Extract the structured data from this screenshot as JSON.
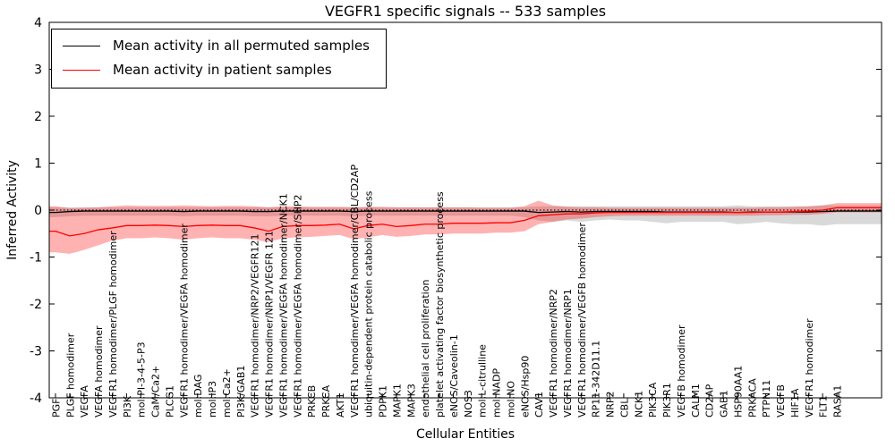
{
  "chart_data": {
    "type": "line",
    "title": "VEGFR1 specific signals -- 533 samples",
    "xlabel": "Cellular Entities",
    "ylabel": "Inferred Activity",
    "ylim": [
      -4,
      4
    ],
    "yticks": [
      4,
      3,
      2,
      1,
      0,
      -1,
      -2,
      -3,
      -4
    ],
    "grid": false,
    "zero_line": true,
    "legend_position": "upper left",
    "categories": [
      "PGF",
      "PLGF homodimer",
      "VEGFA",
      "VEGFA homodimer",
      "VEGFR1 homodimer/PLGF homodimer",
      "PI3K",
      "mol:PI-3-4-5-P3",
      "CaM/Ca2+",
      "PLCG1",
      "VEGFR1 homodimer/VEGFA homodimer",
      "mol:DAG",
      "mol:IP3",
      "mol:Ca2+",
      "PI3K/GAB1",
      "VEGFR1 homodimer/NRP2/VEGFR121",
      "VEGFR1 homodimer/NRP1/VEGFR 121",
      "VEGFR1 homodimer/VEGFA homodimer/NCK1",
      "VEGFR1 homodimer/VEGFA homodimer/SHP2",
      "PRKCB",
      "PRKCA",
      "AKT1",
      "VEGFR1 homodimer/VEGFA homodimer/CBL/CD2AP",
      "ubiquitin-dependent protein catabolic process",
      "PDPK1",
      "MAPK1",
      "MAPK3",
      "endothelial cell proliferation",
      "platelet activating factor biosynthetic process",
      "eNOS/Caveolin-1",
      "NOS3",
      "mol:L-citrulline",
      "mol:NADP",
      "mol:NO",
      "eNOS/Hsp90",
      "CAV1",
      "VEGFR1 homodimer/NRP2",
      "VEGFR1 homodimer/NRP1",
      "VEGFR1 homodimer/VEGFB homodimer",
      "RP11-342D11.1",
      "NRP2",
      "CBL",
      "NCK1",
      "PIK3CA",
      "PIK3R1",
      "VEGFB homodimer",
      "CALM1",
      "CD2AP",
      "GAB1",
      "HSP90AA1",
      "PRKACA",
      "PTPN11",
      "VEGFB",
      "HIF1A",
      "VEGFR1 homodimer",
      "FLT1",
      "RASA1"
    ],
    "series": [
      {
        "name": "Mean activity in all permuted samples",
        "color": "#000000",
        "band_color": "rgba(0,0,0,0.15)",
        "values": [
          -0.05,
          -0.03,
          -0.02,
          -0.02,
          -0.02,
          -0.02,
          -0.02,
          -0.02,
          -0.02,
          -0.03,
          -0.02,
          -0.02,
          -0.02,
          -0.02,
          -0.03,
          -0.03,
          -0.02,
          -0.02,
          -0.02,
          -0.02,
          -0.02,
          -0.03,
          -0.02,
          -0.02,
          -0.02,
          -0.02,
          -0.02,
          -0.02,
          -0.02,
          -0.02,
          -0.02,
          -0.02,
          -0.02,
          -0.02,
          -0.05,
          -0.04,
          -0.03,
          -0.04,
          -0.03,
          -0.03,
          -0.03,
          -0.03,
          -0.03,
          -0.04,
          -0.04,
          -0.04,
          -0.04,
          -0.04,
          -0.05,
          -0.04,
          -0.04,
          -0.04,
          -0.04,
          -0.04,
          -0.03,
          -0.02
        ],
        "band_lower": [
          -0.15,
          -0.13,
          -0.12,
          -0.12,
          -0.12,
          -0.12,
          -0.12,
          -0.12,
          -0.12,
          -0.13,
          -0.12,
          -0.12,
          -0.12,
          -0.12,
          -0.13,
          -0.13,
          -0.12,
          -0.12,
          -0.12,
          -0.12,
          -0.12,
          -0.13,
          -0.12,
          -0.12,
          -0.12,
          -0.12,
          -0.12,
          -0.12,
          -0.12,
          -0.12,
          -0.12,
          -0.12,
          -0.12,
          -0.15,
          -0.22,
          -0.25,
          -0.22,
          -0.25,
          -0.22,
          -0.2,
          -0.22,
          -0.22,
          -0.25,
          -0.28,
          -0.25,
          -0.25,
          -0.25,
          -0.25,
          -0.3,
          -0.28,
          -0.25,
          -0.28,
          -0.3,
          -0.3,
          -0.33,
          -0.3
        ],
        "band_upper": [
          0.06,
          0.06,
          0.06,
          0.06,
          0.06,
          0.06,
          0.06,
          0.06,
          0.06,
          0.06,
          0.06,
          0.06,
          0.06,
          0.06,
          0.06,
          0.06,
          0.06,
          0.06,
          0.06,
          0.06,
          0.06,
          0.06,
          0.06,
          0.06,
          0.06,
          0.06,
          0.06,
          0.06,
          0.06,
          0.06,
          0.06,
          0.06,
          0.06,
          0.06,
          0.08,
          0.08,
          0.08,
          0.08,
          0.08,
          0.08,
          0.08,
          0.08,
          0.08,
          0.08,
          0.08,
          0.08,
          0.08,
          0.08,
          0.1,
          0.08,
          0.08,
          0.08,
          0.08,
          0.08,
          0.1,
          0.1
        ]
      },
      {
        "name": "Mean activity in patient samples",
        "color": "#ff0000",
        "band_color": "rgba(255,0,0,0.30)",
        "values": [
          -0.45,
          -0.55,
          -0.5,
          -0.42,
          -0.38,
          -0.33,
          -0.33,
          -0.32,
          -0.33,
          -0.35,
          -0.33,
          -0.32,
          -0.33,
          -0.33,
          -0.38,
          -0.45,
          -0.35,
          -0.33,
          -0.33,
          -0.32,
          -0.3,
          -0.4,
          -0.33,
          -0.3,
          -0.35,
          -0.33,
          -0.3,
          -0.3,
          -0.28,
          -0.28,
          -0.28,
          -0.27,
          -0.27,
          -0.22,
          -0.12,
          -0.1,
          -0.08,
          -0.08,
          -0.06,
          -0.05,
          -0.05,
          -0.05,
          -0.05,
          -0.05,
          -0.05,
          -0.05,
          -0.05,
          -0.05,
          -0.05,
          -0.05,
          -0.04,
          -0.04,
          -0.03,
          -0.02,
          0.0,
          0.05
        ],
        "band_lower": [
          -0.9,
          -0.93,
          -0.85,
          -0.75,
          -0.65,
          -0.6,
          -0.6,
          -0.58,
          -0.6,
          -0.63,
          -0.6,
          -0.58,
          -0.6,
          -0.6,
          -0.63,
          -0.68,
          -0.6,
          -0.58,
          -0.57,
          -0.55,
          -0.53,
          -0.62,
          -0.58,
          -0.53,
          -0.57,
          -0.55,
          -0.52,
          -0.52,
          -0.5,
          -0.5,
          -0.5,
          -0.48,
          -0.48,
          -0.45,
          -0.3,
          -0.25,
          -0.2,
          -0.18,
          -0.15,
          -0.13,
          -0.12,
          -0.12,
          -0.12,
          -0.12,
          -0.12,
          -0.12,
          -0.12,
          -0.12,
          -0.12,
          -0.12,
          -0.11,
          -0.11,
          -0.1,
          -0.1,
          -0.08,
          -0.05
        ],
        "band_upper": [
          0.08,
          0.04,
          0.05,
          0.06,
          0.08,
          0.1,
          0.09,
          0.09,
          0.09,
          0.1,
          0.09,
          0.08,
          0.09,
          0.09,
          0.08,
          0.06,
          0.08,
          0.08,
          0.07,
          0.07,
          0.07,
          0.06,
          0.07,
          0.07,
          0.06,
          0.06,
          0.06,
          0.06,
          0.06,
          0.06,
          0.05,
          0.05,
          0.05,
          0.08,
          0.2,
          0.1,
          0.07,
          0.06,
          0.06,
          0.05,
          0.05,
          0.05,
          0.05,
          0.05,
          0.05,
          0.05,
          0.05,
          0.05,
          0.05,
          0.05,
          0.06,
          0.06,
          0.07,
          0.08,
          0.1,
          0.15
        ]
      }
    ]
  }
}
